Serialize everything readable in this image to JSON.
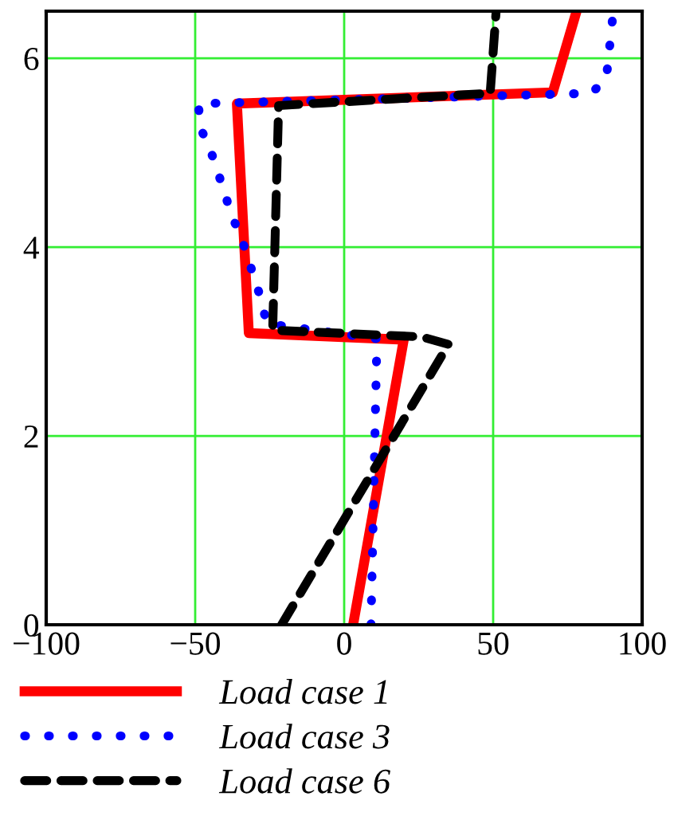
{
  "chart_data": {
    "type": "line",
    "xlim": [
      -100,
      100
    ],
    "ylim": [
      0,
      6.5
    ],
    "xticks": [
      {
        "value": -100,
        "label": "−100"
      },
      {
        "value": -50,
        "label": "−50"
      },
      0,
      50,
      100
    ],
    "yticks": [
      0,
      2,
      4,
      6
    ],
    "grid": true,
    "legend": "bottom",
    "marker": "none",
    "series": [
      {
        "name": "Load case 1",
        "color": "#ff0000",
        "line_style": "solid",
        "x": [
          3,
          20,
          -32,
          -36,
          70,
          78
        ],
        "values": [
          0,
          3.02,
          3.09,
          5.52,
          5.64,
          6.5
        ]
      },
      {
        "name": "Load case 3",
        "color": "#0000ff",
        "line_style": "dotted",
        "x": [
          9,
          11,
          -26,
          -28,
          -34,
          -38,
          -41,
          -44,
          -48,
          -49,
          83,
          88,
          90,
          90
        ],
        "values": [
          0,
          3.03,
          3.19,
          3.46,
          4.05,
          4.36,
          4.66,
          4.95,
          5.25,
          5.52,
          5.63,
          5.79,
          6.4,
          6.5
        ]
      },
      {
        "name": "Load case 6",
        "color": "#000000",
        "line_style": "dashed",
        "x": [
          -21,
          35,
          26,
          -24,
          -22,
          49,
          51
        ],
        "values": [
          0,
          2.97,
          3.05,
          3.12,
          5.5,
          5.63,
          6.5
        ]
      }
    ]
  }
}
